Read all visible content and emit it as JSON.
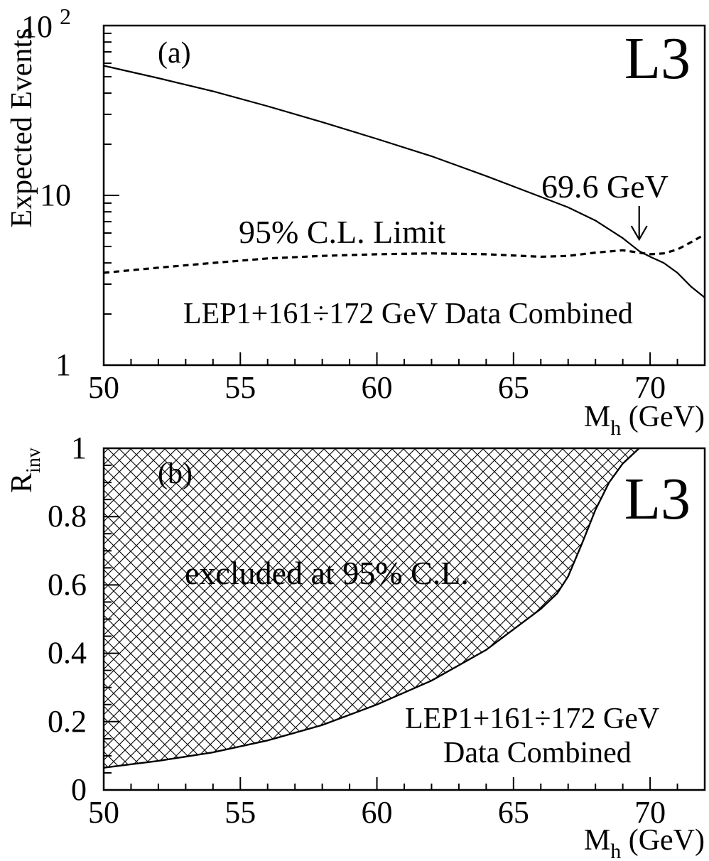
{
  "chart_data": [
    {
      "type": "line",
      "panel_label": "(a)",
      "experiment_label": "L3",
      "xlabel": "M",
      "xlabel_sub": "h",
      "xlabel_unit": " (GeV)",
      "ylabel": "Expected Events",
      "xlim": [
        50,
        72
      ],
      "ylim": [
        1,
        100
      ],
      "yscale": "log",
      "xticks": [
        50,
        55,
        60,
        65,
        70
      ],
      "xtick_labels": [
        "50",
        "55",
        "60",
        "65",
        "70"
      ],
      "yticks": [
        1,
        10,
        100
      ],
      "ytick_labels": [
        "1",
        "10"
      ],
      "ytick_top": {
        "base": "10",
        "exponent": "2"
      },
      "series": [
        {
          "style": "solid",
          "x": [
            50,
            52,
            54,
            56,
            58,
            60,
            62,
            64,
            66,
            67,
            68,
            69,
            69.6,
            70,
            70.5,
            71,
            71.5,
            72
          ],
          "y": [
            58,
            49,
            41,
            33.5,
            27,
            21.5,
            17,
            13,
            9.8,
            8.5,
            7.1,
            5.6,
            4.7,
            4.35,
            4.0,
            3.5,
            2.9,
            2.5
          ]
        },
        {
          "style": "dashed",
          "x": [
            50,
            52,
            54,
            56,
            58,
            60,
            62,
            64,
            66,
            67,
            68,
            69,
            70,
            70.5,
            71,
            71.5,
            72
          ],
          "y": [
            3.5,
            3.75,
            4.0,
            4.25,
            4.4,
            4.5,
            4.55,
            4.5,
            4.35,
            4.4,
            4.6,
            4.75,
            4.5,
            4.55,
            4.8,
            5.3,
            5.9
          ]
        }
      ],
      "annotations": {
        "limit_label": "95% C.L. Limit",
        "mass_label": "69.6 GeV",
        "mass_marker_x": 69.6,
        "data_label": "LEP1+161÷172 GeV Data Combined"
      }
    },
    {
      "type": "area",
      "panel_label": "(b)",
      "experiment_label": "L3",
      "xlabel": "M",
      "xlabel_sub": "h",
      "xlabel_unit": " (GeV)",
      "ylabel": "R",
      "ylabel_sub": "inv",
      "xlim": [
        50,
        72
      ],
      "ylim": [
        0,
        1
      ],
      "xticks": [
        50,
        55,
        60,
        65,
        70
      ],
      "xtick_labels": [
        "50",
        "55",
        "60",
        "65",
        "70"
      ],
      "yticks": [
        0,
        0.2,
        0.4,
        0.6,
        0.8,
        1
      ],
      "ytick_labels": [
        "0",
        "0.2",
        "0.4",
        "0.6",
        "0.8",
        "1"
      ],
      "boundary": {
        "x": [
          50,
          52,
          54,
          56,
          58,
          60,
          62,
          64,
          65,
          66,
          66.6,
          67,
          67.5,
          68,
          68.5,
          69,
          69.6
        ],
        "y": [
          0.065,
          0.085,
          0.11,
          0.145,
          0.19,
          0.25,
          0.32,
          0.41,
          0.47,
          0.53,
          0.575,
          0.625,
          0.72,
          0.82,
          0.9,
          0.955,
          1.0
        ]
      },
      "annotations": {
        "region_label": "excluded at 95% C.L.",
        "data_label_line1": "LEP1+161÷172 GeV",
        "data_label_line2": "Data Combined"
      }
    }
  ]
}
